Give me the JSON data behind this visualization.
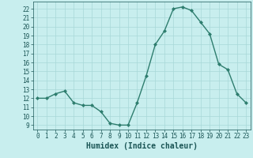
{
  "x": [
    0,
    1,
    2,
    3,
    4,
    5,
    6,
    7,
    8,
    9,
    10,
    11,
    12,
    13,
    14,
    15,
    16,
    17,
    18,
    19,
    20,
    21,
    22,
    23
  ],
  "y": [
    12,
    12,
    12.5,
    12.8,
    11.5,
    11.2,
    11.2,
    10.5,
    9.2,
    9.0,
    9.0,
    11.5,
    14.5,
    18,
    19.5,
    22,
    22.2,
    21.8,
    20.5,
    19.2,
    15.8,
    15.2,
    12.5,
    11.5
  ],
  "line_color": "#2e7d6e",
  "marker": "D",
  "marker_size": 2.0,
  "bg_color": "#c8eeee",
  "grid_color": "#a8d8d8",
  "tick_color": "#1a5555",
  "xlabel": "Humidex (Indice chaleur)",
  "xlim": [
    -0.5,
    23.5
  ],
  "ylim": [
    8.5,
    22.8
  ],
  "yticks": [
    9,
    10,
    11,
    12,
    13,
    14,
    15,
    16,
    17,
    18,
    19,
    20,
    21,
    22
  ],
  "xticks": [
    0,
    1,
    2,
    3,
    4,
    5,
    6,
    7,
    8,
    9,
    10,
    11,
    12,
    13,
    14,
    15,
    16,
    17,
    18,
    19,
    20,
    21,
    22,
    23
  ],
  "xlabel_fontsize": 7.0,
  "tick_fontsize": 5.5,
  "line_width": 1.0
}
